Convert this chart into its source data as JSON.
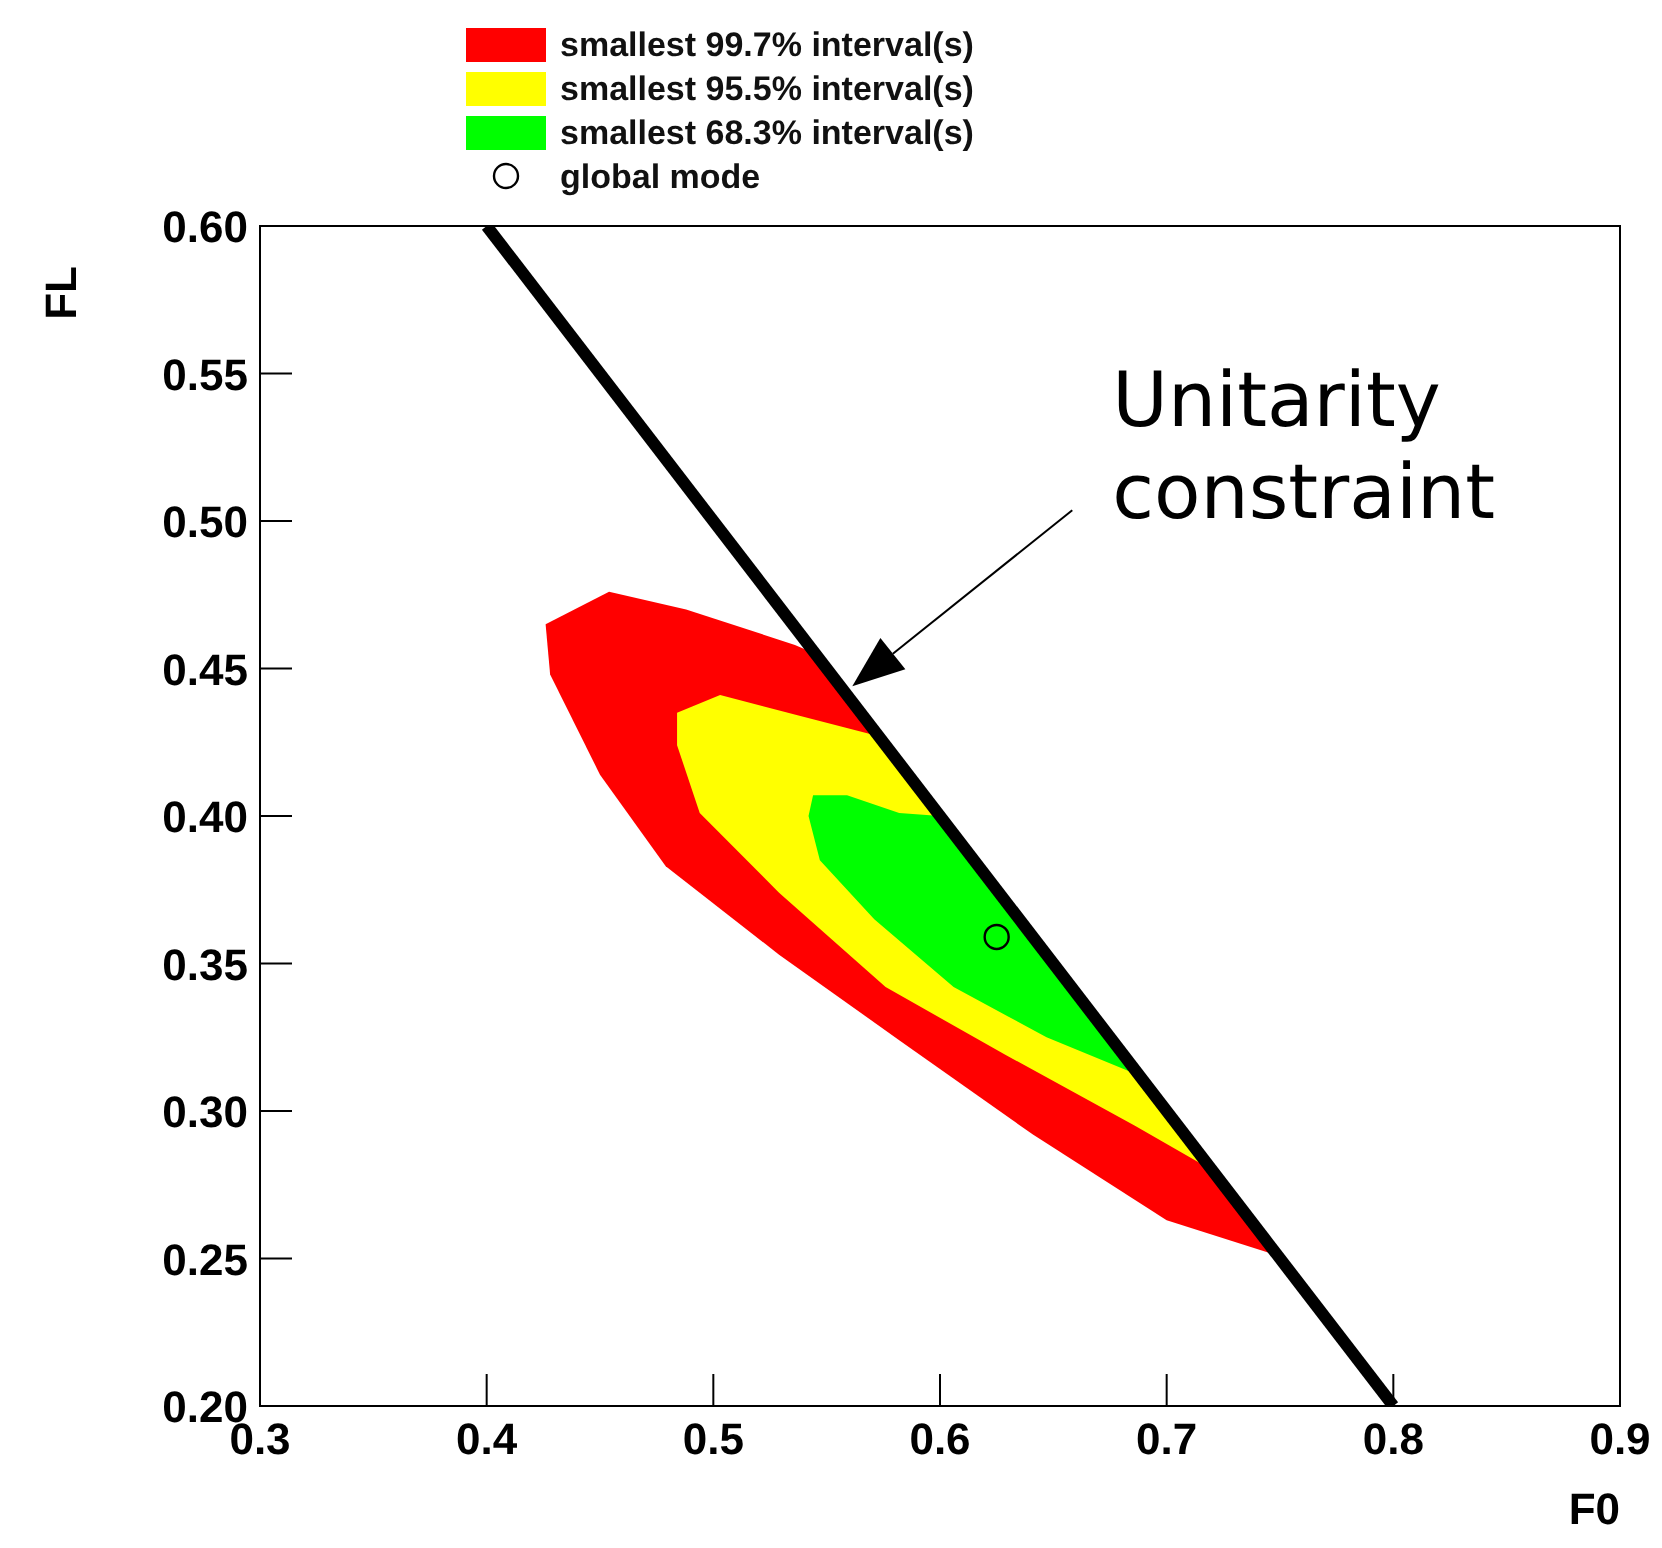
{
  "chart_data": {
    "type": "area",
    "xlabel": "F0",
    "ylabel": "FL",
    "xlim": [
      0.3,
      0.9
    ],
    "xticks": [
      {
        "value": 0.3,
        "label": "0.3"
      },
      {
        "value": 0.4,
        "label": "0.4"
      },
      {
        "value": 0.5,
        "label": "0.5"
      },
      {
        "value": 0.6,
        "label": "0.6"
      },
      {
        "value": 0.7,
        "label": "0.7"
      },
      {
        "value": 0.8,
        "label": "0.8"
      },
      {
        "value": 0.9,
        "label": "0.9"
      }
    ],
    "ylim": [
      0.2,
      0.6
    ],
    "yticks": [
      {
        "value": 0.2,
        "label": "0.20"
      },
      {
        "value": 0.25,
        "label": "0.25"
      },
      {
        "value": 0.3,
        "label": "0.30"
      },
      {
        "value": 0.35,
        "label": "0.35"
      },
      {
        "value": 0.4,
        "label": "0.40"
      },
      {
        "value": 0.45,
        "label": "0.45"
      },
      {
        "value": 0.5,
        "label": "0.50"
      },
      {
        "value": 0.55,
        "label": "0.55"
      },
      {
        "value": 0.6,
        "label": "0.60"
      }
    ],
    "grid": false,
    "legend": "top",
    "series": [
      {
        "name": "smallest 99.7% interval(s)",
        "color": "#ff0000",
        "type": "area",
        "x": [
          0.426,
          0.454,
          0.488,
          0.536,
          0.545,
          0.749,
          0.7,
          0.641,
          0.582,
          0.529,
          0.479,
          0.45,
          0.428
        ],
        "values": [
          0.465,
          0.476,
          0.47,
          0.458,
          0.455,
          0.251,
          0.263,
          0.292,
          0.324,
          0.353,
          0.383,
          0.414,
          0.448
        ]
      },
      {
        "name": "smallest 95.5% interval(s)",
        "color": "#ffff00",
        "type": "area",
        "x": [
          0.484,
          0.503,
          0.538,
          0.573,
          0.72,
          0.686,
          0.629,
          0.576,
          0.529,
          0.494,
          0.484
        ],
        "values": [
          0.435,
          0.441,
          0.434,
          0.427,
          0.28,
          0.295,
          0.319,
          0.342,
          0.374,
          0.401,
          0.424
        ]
      },
      {
        "name": "smallest 68.3% interval(s)",
        "color": "#00ff00",
        "type": "area",
        "x": [
          0.544,
          0.559,
          0.582,
          0.6,
          0.688,
          0.647,
          0.606,
          0.571,
          0.547,
          0.542
        ],
        "values": [
          0.407,
          0.407,
          0.401,
          0.4,
          0.312,
          0.325,
          0.342,
          0.365,
          0.385,
          0.4
        ]
      },
      {
        "color": "#000000",
        "type": "line",
        "x": [
          0.4,
          0.8
        ],
        "values": [
          0.6,
          0.2
        ]
      },
      {
        "name": "global mode",
        "color": "#000000",
        "type": "scatter",
        "marker": "circle",
        "x": [
          0.625
        ],
        "values": [
          0.359
        ]
      }
    ],
    "annotations": [
      "Unitarity constraint"
    ]
  }
}
